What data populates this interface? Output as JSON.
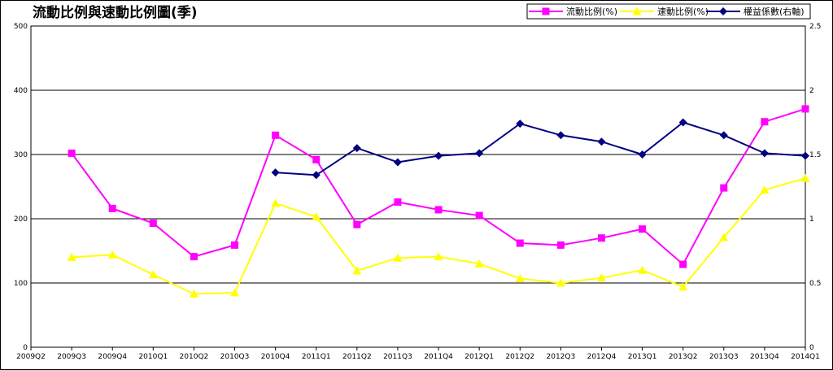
{
  "chart_data": {
    "type": "line",
    "title": "流動比例與速動比例圖(季)",
    "categories": [
      "2009Q2",
      "2009Q3",
      "2009Q4",
      "2010Q1",
      "2010Q2",
      "2010Q3",
      "2010Q4",
      "2011Q1",
      "2011Q2",
      "2011Q3",
      "2011Q4",
      "2012Q1",
      "2012Q2",
      "2012Q3",
      "2012Q4",
      "2013Q1",
      "2013Q2",
      "2013Q3",
      "2013Q4",
      "2014Q1"
    ],
    "ylim": [
      0,
      500
    ],
    "y2lim": [
      0,
      2.5
    ],
    "y_ticks": [
      "0",
      "100",
      "200",
      "300",
      "400",
      "500"
    ],
    "y2_ticks": [
      "0",
      "0.5",
      "1",
      "1.5",
      "2",
      "2.5"
    ],
    "grid": true,
    "legend_position": "top-right",
    "series": [
      {
        "name": "流動比例(%)",
        "axis": "left",
        "color": "#ff00ff",
        "marker": "square",
        "values": [
          null,
          302,
          216,
          193,
          141,
          159,
          330,
          292,
          191,
          226,
          214,
          205,
          162,
          159,
          170,
          184,
          129,
          248,
          351,
          371
        ]
      },
      {
        "name": "速動比例(%)",
        "axis": "left",
        "color": "#ffff00",
        "marker": "triangle",
        "values": [
          null,
          140,
          144,
          113,
          83,
          85,
          224,
          203,
          119,
          139,
          141,
          130,
          107,
          100,
          108,
          120,
          94,
          171,
          245,
          263
        ]
      },
      {
        "name": "權益係數(右軸)",
        "axis": "right",
        "color": "#000080",
        "marker": "diamond",
        "values": [
          null,
          null,
          null,
          null,
          null,
          null,
          1.36,
          1.34,
          1.55,
          1.44,
          1.49,
          1.51,
          1.74,
          1.65,
          1.6,
          1.5,
          1.75,
          1.65,
          1.51,
          1.49
        ]
      }
    ]
  }
}
